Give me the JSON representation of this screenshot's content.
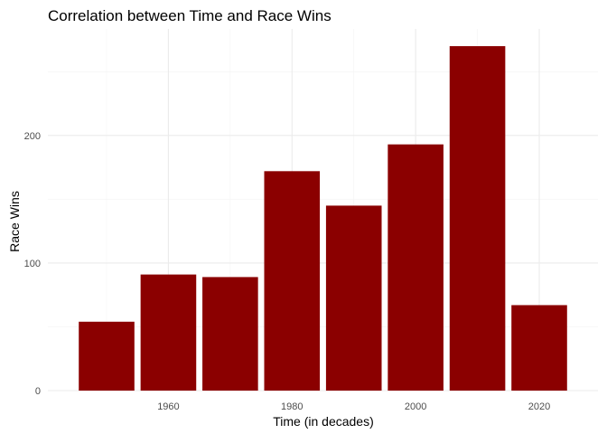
{
  "chart_data": {
    "type": "bar",
    "title": "Correlation between Time and Race Wins",
    "xlabel": "Time (in decades)",
    "ylabel": "Race Wins",
    "categories": [
      1950,
      1960,
      1970,
      1980,
      1990,
      2000,
      2010,
      2020
    ],
    "values": [
      54,
      91,
      89,
      172,
      145,
      193,
      270,
      67
    ],
    "xlim": [
      1940.5,
      2029.5
    ],
    "ylim": [
      0,
      283.5
    ],
    "x_ticks": [
      1960,
      1980,
      2000,
      2020
    ],
    "x_minor_ticks": [
      1950,
      1970,
      1990,
      2010
    ],
    "y_ticks": [
      0,
      100,
      200
    ],
    "y_minor_ticks": [
      50,
      150,
      250
    ],
    "bar_color": "#8b0000",
    "grid": true,
    "legend": "none"
  }
}
